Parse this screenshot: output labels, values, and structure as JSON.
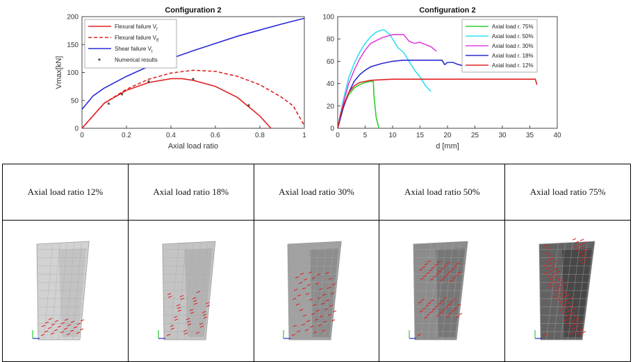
{
  "chart_data": [
    {
      "type": "line",
      "title": "Configuration 2",
      "xlabel": "Axial load ratio",
      "ylabel": "Vmax[kN]",
      "xlim": [
        0,
        1
      ],
      "ylim": [
        0,
        200
      ],
      "xticks": [
        "0",
        "0.2",
        "0.4",
        "0.6",
        "0.8",
        "1"
      ],
      "yticks": [
        "0",
        "50",
        "100",
        "150",
        "200"
      ],
      "series": [
        {
          "name": "Flexural failure V",
          "sub": "f",
          "color": "#e02020",
          "dash": false,
          "x": [
            0,
            0.1,
            0.2,
            0.3,
            0.4,
            0.45,
            0.5,
            0.6,
            0.7,
            0.8,
            0.85
          ],
          "y": [
            0,
            45,
            68,
            82,
            89,
            89,
            86,
            75,
            55,
            22,
            0
          ]
        },
        {
          "name": "Flexural failure V",
          "sub": "ff",
          "color": "#e02020",
          "dash": true,
          "x": [
            0,
            0.1,
            0.2,
            0.3,
            0.4,
            0.5,
            0.6,
            0.7,
            0.8,
            0.9,
            0.95,
            1.0
          ],
          "y": [
            0,
            45,
            70,
            88,
            99,
            104,
            102,
            93,
            78,
            55,
            40,
            5
          ]
        },
        {
          "name": "Shear failure V",
          "sub": "t",
          "color": "#2828d8",
          "dash": false,
          "x": [
            0,
            0.05,
            0.1,
            0.2,
            0.3,
            0.4,
            0.5,
            0.6,
            0.7,
            0.8,
            0.9,
            1.0
          ],
          "y": [
            34,
            58,
            72,
            93,
            111,
            125,
            139,
            152,
            165,
            176,
            187,
            197
          ]
        }
      ],
      "markers": {
        "name": "Numerical results",
        "symbol": "*",
        "x": [
          0.12,
          0.18,
          0.3,
          0.5,
          0.75
        ],
        "y": [
          44,
          61,
          84,
          88,
          41
        ]
      }
    },
    {
      "type": "line",
      "title": "Configuration 2",
      "xlabel": "d [mm]",
      "ylabel": "V[kN]",
      "xlim": [
        0,
        40
      ],
      "ylim": [
        0,
        100
      ],
      "xticks": [
        "0",
        "5",
        "10",
        "15",
        "20",
        "25",
        "30",
        "35",
        "40"
      ],
      "yticks": [
        "0",
        "20",
        "40",
        "60",
        "80",
        "100"
      ],
      "series": [
        {
          "name": "Axial load r. 75%",
          "color": "#2ecc2e",
          "x": [
            0,
            1,
            2,
            3,
            4,
            5,
            6,
            6.5,
            6.6,
            7,
            7.5
          ],
          "y": [
            0,
            20,
            30,
            36,
            39,
            41,
            42,
            42,
            30,
            10,
            0
          ]
        },
        {
          "name": "Axial load r. 50%",
          "color": "#2fe0f0",
          "x": [
            0,
            1,
            2,
            3,
            4,
            5,
            6,
            7,
            8,
            8.5,
            9.5,
            10.5,
            11,
            12,
            13,
            14,
            15,
            16,
            17
          ],
          "y": [
            0,
            25,
            45,
            58,
            68,
            76,
            82,
            86,
            88,
            88,
            84,
            76,
            72,
            68,
            60,
            52,
            46,
            38,
            33
          ]
        },
        {
          "name": "Axial load r. 30%",
          "color": "#e040e0",
          "x": [
            0,
            1,
            2,
            3,
            4,
            5,
            6,
            8,
            10,
            12,
            13,
            14,
            15,
            16,
            17,
            18
          ],
          "y": [
            0,
            22,
            40,
            52,
            62,
            70,
            76,
            81,
            84,
            84,
            78,
            76,
            77,
            75,
            73,
            69
          ]
        },
        {
          "name": "Axial load r. 18%",
          "color": "#2a2ad0",
          "x": [
            0,
            1,
            2,
            3,
            4,
            5,
            6,
            8,
            10,
            12,
            15,
            18,
            19,
            19.5,
            20,
            21,
            22,
            23,
            24
          ],
          "y": [
            0,
            18,
            32,
            42,
            48,
            52,
            55,
            58,
            60,
            61,
            61,
            61,
            61,
            57,
            59,
            59,
            57,
            56,
            55
          ]
        },
        {
          "name": "Axial load r. 12%",
          "color": "#e02020",
          "x": [
            0,
            0.5,
            1,
            2,
            3,
            4,
            5,
            6,
            10,
            15,
            20,
            25,
            30,
            35,
            36,
            36.3
          ],
          "y": [
            0,
            12,
            20,
            32,
            38,
            41,
            42,
            43,
            44,
            44,
            44,
            44,
            44,
            44,
            44,
            39
          ]
        }
      ]
    }
  ],
  "table": {
    "cells": [
      {
        "label": "Axial load ratio 12%",
        "cracks": 0.2
      },
      {
        "label": "Axial load ratio 18%",
        "cracks": 0.3
      },
      {
        "label": "Axial load ratio 30%",
        "cracks": 0.55
      },
      {
        "label": "Axial load ratio 50%",
        "cracks": 0.7
      },
      {
        "label": "Axial load ratio 75%",
        "cracks": 1.0
      }
    ]
  }
}
